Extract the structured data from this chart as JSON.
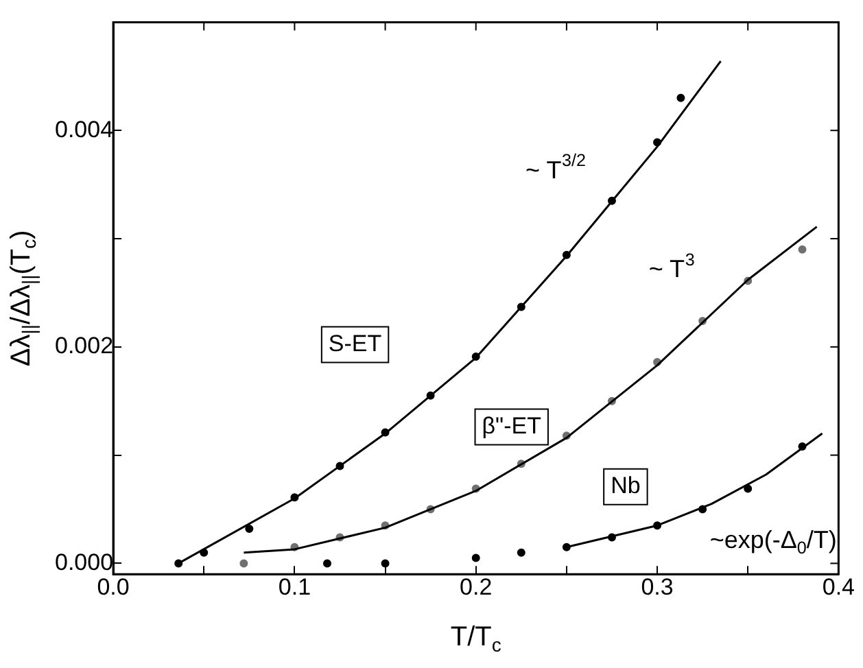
{
  "chart_data": {
    "type": "scatter",
    "xlabel": "T/T$_{c}$",
    "ylabel": "Δλ$_{||}$/Δλ$_{||}$(T$_{c}$)",
    "xlim": [
      0,
      0.4
    ],
    "ylim": [
      -0.0001,
      0.005
    ],
    "xticks": [
      {
        "value": 0,
        "label": "0.0"
      },
      {
        "value": 0.05,
        "label": null
      },
      {
        "value": 0.1,
        "label": "0.1"
      },
      {
        "value": 0.15,
        "label": null
      },
      {
        "value": 0.2,
        "label": "0.2"
      },
      {
        "value": 0.25,
        "label": null
      },
      {
        "value": 0.3,
        "label": "0.3"
      },
      {
        "value": 0.35,
        "label": null
      },
      {
        "value": 0.4,
        "label": "0.4"
      }
    ],
    "yticks": [
      {
        "value": 0,
        "label": "0.000"
      },
      {
        "value": 0.001,
        "label": null
      },
      {
        "value": 0.002,
        "label": "0.002"
      },
      {
        "value": 0.003,
        "label": null
      },
      {
        "value": 0.004,
        "label": "0.004"
      }
    ],
    "grid": false,
    "legend": false,
    "series": [
      {
        "name": "S-ET",
        "marker": "circle",
        "color": "#000000",
        "x": [
          0.036,
          0.05,
          0.075,
          0.1,
          0.125,
          0.15,
          0.175,
          0.2,
          0.225,
          0.25,
          0.275,
          0.3,
          0.313
        ],
        "values": [
          0,
          0.0001,
          0.00032,
          0.00061,
          0.0009,
          0.00121,
          0.00155,
          0.00191,
          0.00237,
          0.00285,
          0.00335,
          0.00389,
          0.0043
        ]
      },
      {
        "type": "line",
        "marker": "none",
        "color": "#000000",
        "x": [
          0.036,
          0.1,
          0.15,
          0.2,
          0.25,
          0.3,
          0.335
        ],
        "values": [
          0,
          0.0006,
          0.0012,
          0.0019,
          0.00284,
          0.00385,
          0.00464
        ]
      },
      {
        "name": "β\"-ET",
        "marker": "circle",
        "color": "#707070",
        "x": [
          0.072,
          0.1,
          0.125,
          0.15,
          0.175,
          0.2,
          0.225,
          0.25,
          0.275,
          0.3,
          0.325,
          0.35,
          0.38
        ],
        "values": [
          0,
          0.00015,
          0.00024,
          0.00035,
          0.0005,
          0.00069,
          0.00092,
          0.00118,
          0.0015,
          0.00186,
          0.00224,
          0.00261,
          0.0029
        ]
      },
      {
        "type": "line",
        "marker": "none",
        "color": "#000000",
        "x": [
          0.072,
          0.1,
          0.15,
          0.2,
          0.25,
          0.3,
          0.35,
          0.388
        ],
        "values": [
          0.0001,
          0.00013,
          0.00033,
          0.00067,
          0.00116,
          0.00183,
          0.00262,
          0.00311
        ]
      },
      {
        "name": "Nb",
        "marker": "circle",
        "color": "#000000",
        "x": [
          0.118,
          0.15,
          0.2,
          0.225,
          0.25,
          0.275,
          0.3,
          0.325,
          0.35,
          0.38
        ],
        "values": [
          0,
          0,
          5e-05,
          0.0001,
          0.00015,
          0.00024,
          0.00035,
          0.0005,
          0.00069,
          0.00108
        ]
      },
      {
        "type": "line",
        "marker": "none",
        "color": "#000000",
        "x": [
          0.25,
          0.3,
          0.33,
          0.36,
          0.391
        ],
        "values": [
          0.00015,
          0.00035,
          0.00055,
          0.00082,
          0.0012
        ]
      }
    ],
    "annotations": [
      "~ T$^{3/2}$",
      "~ T$^{3}$",
      "~exp(-Δ$_{0}$/T)"
    ]
  }
}
